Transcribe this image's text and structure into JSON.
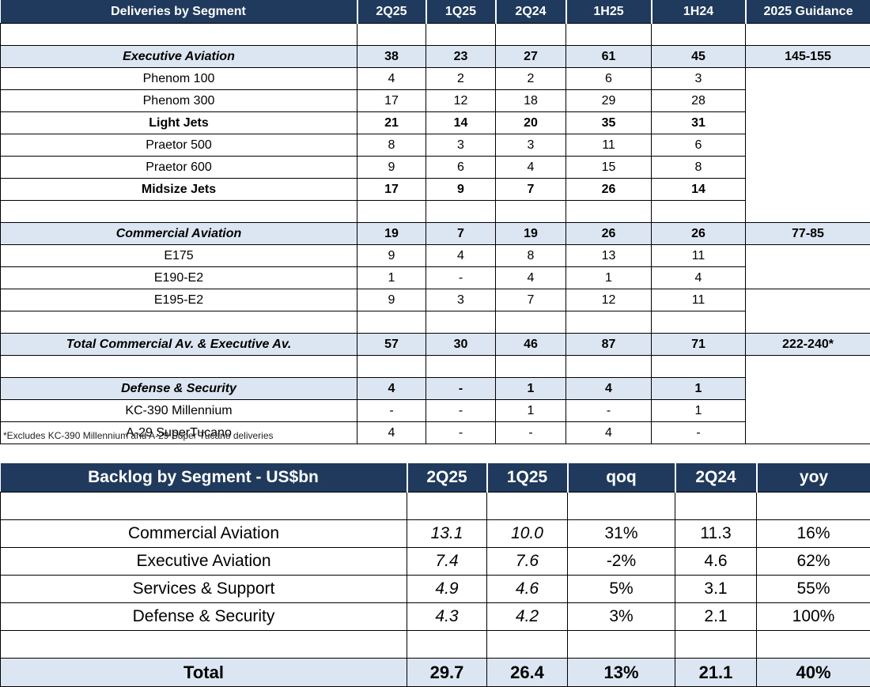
{
  "deliveries": {
    "columns": [
      "Deliveries by Segment",
      "2Q25",
      "1Q25",
      "2Q24",
      "1H25",
      "1H24",
      "2025 Guidance"
    ],
    "rows": [
      {
        "label": "",
        "v": [
          "",
          "",
          "",
          "",
          ""
        ],
        "g": ""
      },
      {
        "label": "Executive Aviation",
        "v": [
          "38",
          "23",
          "27",
          "61",
          "45"
        ],
        "g": "145-155"
      },
      {
        "label": "Phenom 100",
        "v": [
          "4",
          "2",
          "2",
          "6",
          "3"
        ]
      },
      {
        "label": "Phenom 300",
        "v": [
          "17",
          "12",
          "18",
          "29",
          "28"
        ]
      },
      {
        "label": "Light Jets",
        "v": [
          "21",
          "14",
          "20",
          "35",
          "31"
        ]
      },
      {
        "label": "Praetor 500",
        "v": [
          "8",
          "3",
          "3",
          "11",
          "6"
        ]
      },
      {
        "label": "Praetor 600",
        "v": [
          "9",
          "6",
          "4",
          "15",
          "8"
        ]
      },
      {
        "label": "Midsize Jets",
        "v": [
          "17",
          "9",
          "7",
          "26",
          "14"
        ]
      },
      {
        "label": "",
        "v": [
          "",
          "",
          "",
          "",
          ""
        ]
      },
      {
        "label": "Commercial Aviation",
        "v": [
          "19",
          "7",
          "19",
          "26",
          "26"
        ],
        "g": "77-85"
      },
      {
        "label": "E175",
        "v": [
          "9",
          "4",
          "8",
          "13",
          "11"
        ]
      },
      {
        "label": "E190-E2",
        "v": [
          "1",
          "-",
          "4",
          "1",
          "4"
        ]
      },
      {
        "label": "E195-E2",
        "v": [
          "9",
          "3",
          "7",
          "12",
          "11"
        ]
      },
      {
        "label": "",
        "v": [
          "",
          "",
          "",
          "",
          ""
        ]
      },
      {
        "label": "Total Commercial Av. & Executive Av.",
        "v": [
          "57",
          "30",
          "46",
          "87",
          "71"
        ],
        "g": "222-240*"
      },
      {
        "label": "",
        "v": [
          "",
          "",
          "",
          "",
          ""
        ]
      },
      {
        "label": "Defense & Security",
        "v": [
          "4",
          "-",
          "1",
          "4",
          "1"
        ]
      },
      {
        "label": "KC-390 Millennium",
        "v": [
          "-",
          "-",
          "1",
          "-",
          "1"
        ]
      },
      {
        "label": "A-29 SuperTucano",
        "v": [
          "4",
          "-",
          "-",
          "4",
          "-"
        ]
      }
    ],
    "footnote": "*Excludes KC-390 Millennium and A-29 Super Tucano deliveries"
  },
  "backlog": {
    "columns": [
      "Backlog by Segment - US$bn",
      "2Q25",
      "1Q25",
      "qoq",
      "2Q24",
      "yoy"
    ],
    "rows": [
      {
        "label": "",
        "v": [
          "",
          "",
          "",
          "",
          ""
        ]
      },
      {
        "label": "Commercial Aviation",
        "v": [
          "13.1",
          "10.0",
          "31%",
          "11.3",
          "16%"
        ]
      },
      {
        "label": "Executive Aviation",
        "v": [
          "7.4",
          "7.6",
          "-2%",
          "4.6",
          "62%"
        ]
      },
      {
        "label": "Services & Support",
        "v": [
          "4.9",
          "4.6",
          "5%",
          "3.1",
          "55%"
        ]
      },
      {
        "label": "Defense & Security",
        "v": [
          "4.3",
          "4.2",
          "3%",
          "2.1",
          "100%"
        ]
      },
      {
        "label": "",
        "v": [
          "",
          "",
          "",
          "",
          ""
        ]
      },
      {
        "label": "Total",
        "v": [
          "29.7",
          "26.4",
          "13%",
          "21.1",
          "40%"
        ]
      }
    ]
  },
  "colors": {
    "header_bg": "#1f3a5c",
    "highlight_bg": "#dce6f2"
  }
}
